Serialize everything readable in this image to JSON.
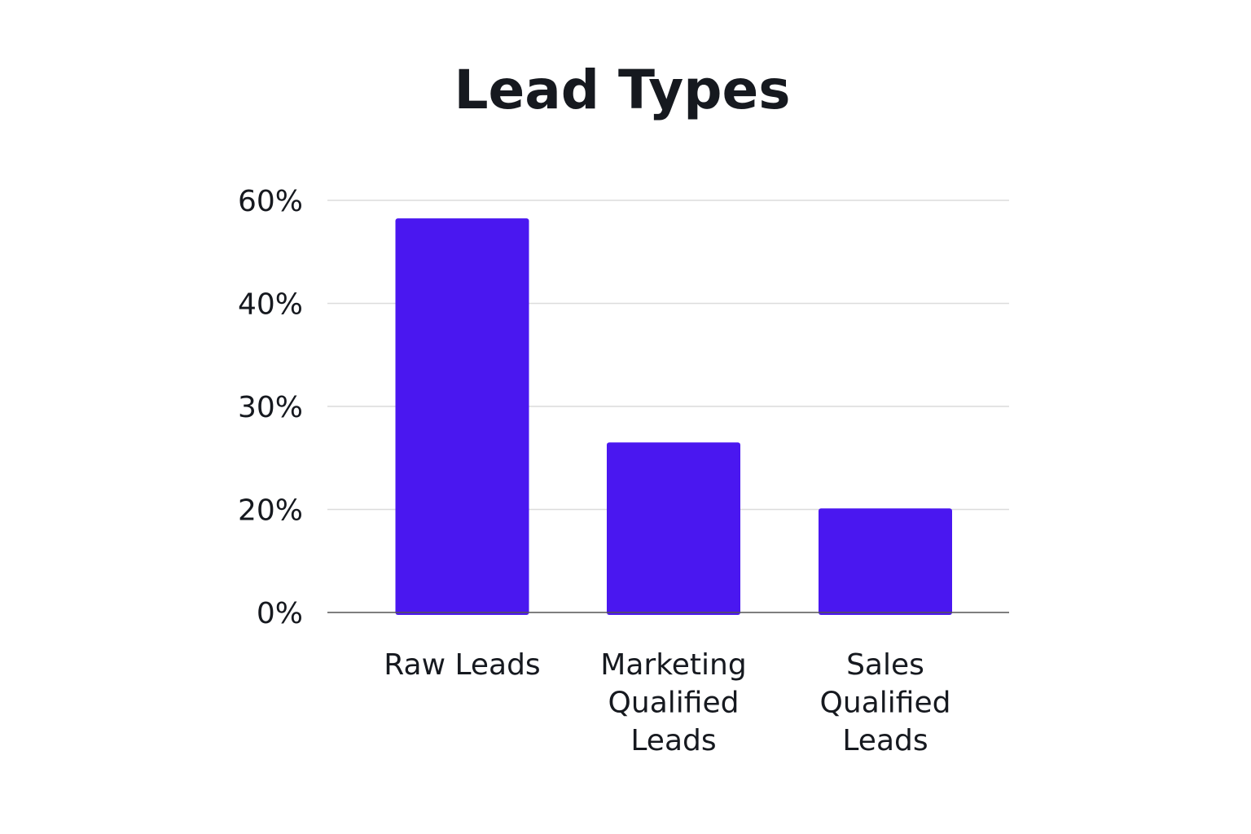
{
  "chart_data": {
    "type": "bar",
    "title": "Lead Types",
    "categories": [
      [
        "Raw Leads"
      ],
      [
        "Marketing",
        "Qualified",
        "Leads"
      ],
      [
        "Sales",
        "Qualified",
        "Leads"
      ]
    ],
    "values": [
      56.5,
      26.5,
      20.1
    ],
    "y_ticks": [
      {
        "value": 0,
        "label": "0%"
      },
      {
        "value": 20,
        "label": "20%"
      },
      {
        "value": 30,
        "label": "30%"
      },
      {
        "value": 40,
        "label": "40%"
      },
      {
        "value": 60,
        "label": "60%"
      }
    ],
    "tick_positions": [
      0,
      1,
      2,
      3,
      4
    ],
    "grid": true,
    "legend": "none",
    "bar_color": "#4a17f0",
    "xlabel": "",
    "ylabel": ""
  }
}
